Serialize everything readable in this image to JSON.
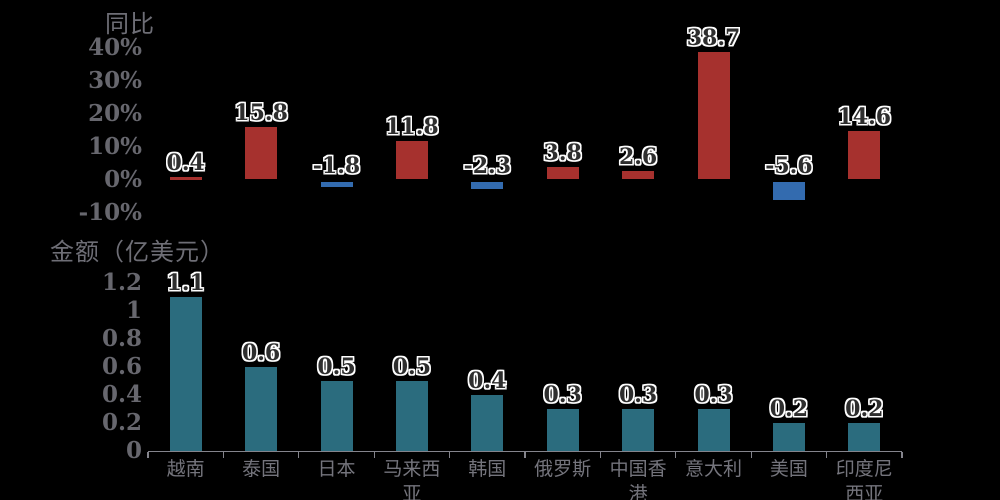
{
  "colors": {
    "background": "#000000",
    "bar_positive": "#A6312E",
    "bar_negative": "#336BAF",
    "bar_amount": "#2B6C7E",
    "axis_text": "#67676E",
    "title_text": "#6E6E76",
    "category_text": "#74747C",
    "axis_line": "#84848C",
    "data_label_fill": "#2E2E2E",
    "data_label_outline": "#FFFFFF"
  },
  "chart_data": [
    {
      "type": "bar",
      "title": "同比",
      "categories": [
        "越南",
        "泰国",
        "日本",
        "马来西亚",
        "韩国",
        "俄罗斯",
        "中国香港",
        "意大利",
        "美国",
        "印度尼西亚"
      ],
      "values": [
        0.4,
        15.8,
        -1.8,
        11.8,
        -2.3,
        3.8,
        2.6,
        38.7,
        -5.6,
        14.6
      ],
      "data_labels": [
        "0.4",
        "15.8",
        "-1.8",
        "11.8",
        "-2.3",
        "3.8",
        "2.6",
        "38.7",
        "-5.6",
        "14.6"
      ],
      "unit": "%",
      "yticks": [
        40,
        30,
        20,
        10,
        0,
        -10
      ],
      "ytick_labels": [
        "40%",
        "30%",
        "20%",
        "10%",
        "0%",
        "-10%"
      ],
      "ylim": [
        -10,
        45
      ],
      "grid": false,
      "legend": "none",
      "category_axis_visible": false
    },
    {
      "type": "bar",
      "title": "金额（亿美元）",
      "categories": [
        "越南",
        "泰国",
        "日本",
        "马来西亚",
        "韩国",
        "俄罗斯",
        "中国香港",
        "意大利",
        "美国",
        "印度尼西亚"
      ],
      "category_display": [
        "越南",
        "泰国",
        "日本",
        "马来西\n亚",
        "韩国",
        "俄罗斯",
        "中国香\n港",
        "意大利",
        "美国",
        "印度尼\n西亚"
      ],
      "values": [
        1.1,
        0.6,
        0.5,
        0.5,
        0.4,
        0.3,
        0.3,
        0.3,
        0.2,
        0.2
      ],
      "data_labels": [
        "1.1",
        "0.6",
        "0.5",
        "0.5",
        "0.4",
        "0.3",
        "0.3",
        "0.3",
        "0.2",
        "0.2"
      ],
      "unit": "亿美元",
      "yticks": [
        1.2,
        1,
        0.8,
        0.6,
        0.4,
        0.2,
        0
      ],
      "ytick_labels": [
        "1.2",
        "1",
        "0.8",
        "0.6",
        "0.4",
        "0.2",
        "0"
      ],
      "ylim": [
        0,
        1.2
      ],
      "grid": false,
      "legend": "none",
      "category_axis_visible": true
    }
  ]
}
